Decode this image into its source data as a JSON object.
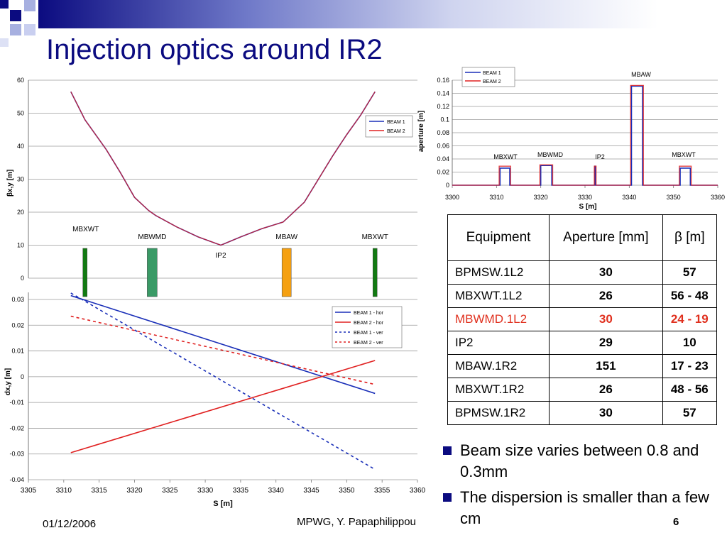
{
  "slide": {
    "title": "Injection optics around IR2",
    "footer_date": "01/12/2006",
    "footer_author": "MPWG, Y. Papaphilippou",
    "page_number": "6",
    "accent_color": "#0b0b80"
  },
  "table": {
    "headers": [
      "Equipment",
      "Aperture [mm]",
      "β [m]"
    ],
    "rows": [
      {
        "equipment": "BPMSW.1L2",
        "aperture": "30",
        "beta": "57",
        "highlight": false
      },
      {
        "equipment": "MBXWT.1L2",
        "aperture": "26",
        "beta": "56 - 48",
        "highlight": false
      },
      {
        "equipment": "MBWMD.1L2",
        "aperture": "30",
        "beta": "24 - 19",
        "highlight": true
      },
      {
        "equipment": "IP2",
        "aperture": "29",
        "beta": "10",
        "highlight": false
      },
      {
        "equipment": "MBAW.1R2",
        "aperture": "151",
        "beta": "17 - 23",
        "highlight": false
      },
      {
        "equipment": "MBXWT.1R2",
        "aperture": "26",
        "beta": "48 - 56",
        "highlight": false
      },
      {
        "equipment": "BPMSW.1R2",
        "aperture": "30",
        "beta": "57",
        "highlight": false
      }
    ],
    "highlight_color": "#e0301e"
  },
  "bullets": [
    "Beam size varies between 0.8 and 0.3mm",
    "The dispersion is smaller than a few cm"
  ],
  "chart_data": [
    {
      "type": "line",
      "name": "beta",
      "ylabel": "βx,y [m]",
      "ylim": [
        0,
        60
      ],
      "yticks": [
        "0",
        "10",
        "20",
        "30",
        "40",
        "50",
        "60"
      ],
      "xlim": [
        3305,
        3360
      ],
      "series": [
        {
          "name": "BEAM 1",
          "color": "#1a2fb8",
          "x": [
            3311,
            3313,
            3316,
            3318,
            3320,
            3322,
            3323,
            3326,
            3329,
            3332.2,
            3335,
            3338,
            3341,
            3342,
            3343,
            3344,
            3346,
            3348,
            3350,
            3352,
            3354
          ],
          "y": [
            56.5,
            48,
            39,
            32,
            24.5,
            20.5,
            19,
            15.5,
            12.5,
            10,
            12.5,
            15,
            17,
            19,
            21,
            23,
            30,
            37,
            43.5,
            49.5,
            56.5
          ]
        },
        {
          "name": "BEAM 2",
          "color": "#e02020",
          "x": [
            3311,
            3313,
            3316,
            3318,
            3320,
            3322,
            3323,
            3326,
            3329,
            3332.2,
            3335,
            3338,
            3341,
            3342,
            3343,
            3344,
            3346,
            3348,
            3350,
            3352,
            3354
          ],
          "y": [
            56.5,
            48,
            39,
            32,
            24.5,
            20.5,
            19,
            15.5,
            12.5,
            10,
            12.5,
            15,
            17,
            19,
            21,
            23,
            30,
            37,
            43.5,
            49.5,
            56.5
          ]
        }
      ],
      "elements": [
        {
          "label": "MBXWT",
          "s": 3313,
          "color": "#127a12"
        },
        {
          "label": "MBWMD",
          "s": 3322.5,
          "color": "#3a9a66"
        },
        {
          "label": "IP2",
          "s": 3332.2,
          "color": "none"
        },
        {
          "label": "MBAW",
          "s": 3341.5,
          "color": "#f5a011"
        },
        {
          "label": "MBXWT",
          "s": 3354,
          "color": "#127a12"
        }
      ]
    },
    {
      "type": "line",
      "name": "dispersion",
      "xlabel": "S [m]",
      "ylabel": "dx,y [m]",
      "xlim": [
        3305,
        3360
      ],
      "ylim": [
        -0.04,
        0.03
      ],
      "xticks": [
        "3305",
        "3310",
        "3315",
        "3320",
        "3325",
        "3330",
        "3335",
        "3340",
        "3345",
        "3350",
        "3355",
        "3360"
      ],
      "yticks": [
        "0.03",
        "0.02",
        "0.01",
        "0",
        "-0.01",
        "-0.02",
        "-0.03",
        "-0.04"
      ],
      "series": [
        {
          "name": "BEAM 1 - hor",
          "color": "#1a2fb8",
          "dash": false,
          "x": [
            3311,
            3354
          ],
          "y": [
            0.0315,
            -0.0065
          ]
        },
        {
          "name": "BEAM 2 - hor",
          "color": "#e02020",
          "dash": false,
          "x": [
            3311,
            3354
          ],
          "y": [
            -0.0295,
            0.0063
          ]
        },
        {
          "name": "BEAM 1 - ver",
          "color": "#1a2fb8",
          "dash": true,
          "x": [
            3311,
            3354
          ],
          "y": [
            0.0325,
            -0.036
          ]
        },
        {
          "name": "BEAM 2 - ver",
          "color": "#e02020",
          "dash": true,
          "x": [
            3311,
            3354
          ],
          "y": [
            0.0235,
            -0.003
          ]
        }
      ]
    },
    {
      "type": "line",
      "name": "aperture",
      "xlabel": "S [m]",
      "ylabel": "aperture [m]",
      "xlim": [
        3300,
        3360
      ],
      "ylim": [
        0,
        0.16
      ],
      "xticks": [
        "3300",
        "3310",
        "3320",
        "3330",
        "3340",
        "3350",
        "3360"
      ],
      "yticks": [
        "0",
        "0.02",
        "0.04",
        "0.06",
        "0.08",
        "0.1",
        "0.12",
        "0.14",
        "0.16"
      ],
      "series": [
        {
          "name": "BEAM 1",
          "color": "#1a2fb8",
          "x": [
            3300,
            3310.8,
            3310.8,
            3313,
            3313,
            3320,
            3320,
            3322.5,
            3322.5,
            3332.2,
            3332.2,
            3332.4,
            3332.4,
            3340.5,
            3340.5,
            3343,
            3343,
            3351.5,
            3351.5,
            3353.8,
            3353.8,
            3360
          ],
          "y": [
            0,
            0,
            0.026,
            0.026,
            0,
            0,
            0.03,
            0.03,
            0,
            0,
            0.029,
            0.029,
            0,
            0,
            0.151,
            0.151,
            0,
            0,
            0.026,
            0.026,
            0,
            0
          ]
        },
        {
          "name": "BEAM 2",
          "color": "#e02020",
          "x": [
            3300,
            3310.6,
            3310.6,
            3313.2,
            3313.2,
            3319.8,
            3319.8,
            3322.7,
            3322.7,
            3332.1,
            3332.1,
            3332.5,
            3332.5,
            3340.3,
            3340.3,
            3343.2,
            3343.2,
            3351.3,
            3351.3,
            3354,
            3354,
            3360
          ],
          "y": [
            0,
            0,
            0.029,
            0.029,
            0,
            0,
            0.031,
            0.031,
            0,
            0,
            0.029,
            0.029,
            0,
            0,
            0.152,
            0.152,
            0,
            0,
            0.029,
            0.029,
            0,
            0
          ]
        }
      ],
      "annotations": [
        "MBXWT",
        "MBWMD",
        "IP2",
        "MBAW",
        "MBXWT"
      ]
    }
  ]
}
